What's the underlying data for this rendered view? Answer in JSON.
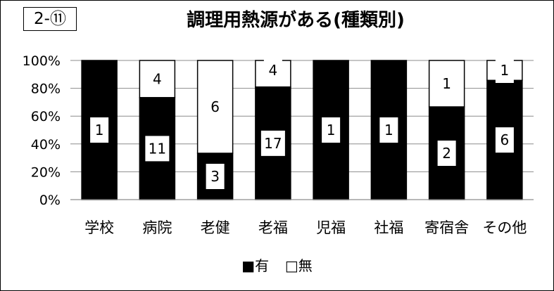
{
  "badge": "2-⑪",
  "chart_data": {
    "type": "bar",
    "stacked": true,
    "normalized": true,
    "title": "調理用熱源がある(種類別)",
    "categories": [
      "学校",
      "病院",
      "老健",
      "老福",
      "児福",
      "社福",
      "寄宿舎",
      "その他"
    ],
    "series": [
      {
        "name": "有",
        "color": "#000000",
        "values": [
          1,
          11,
          3,
          17,
          1,
          1,
          2,
          6
        ]
      },
      {
        "name": "無",
        "color": "#ffffff",
        "values": [
          0,
          4,
          6,
          4,
          0,
          0,
          1,
          1
        ]
      }
    ],
    "yticks": [
      "0%",
      "20%",
      "40%",
      "60%",
      "80%",
      "100%"
    ],
    "ylim": [
      0,
      100
    ],
    "grid": true,
    "legend_position": "bottom"
  },
  "legend": {
    "items": [
      {
        "symbol": "■",
        "label": "有"
      },
      {
        "symbol": "□",
        "label": "無"
      }
    ]
  }
}
